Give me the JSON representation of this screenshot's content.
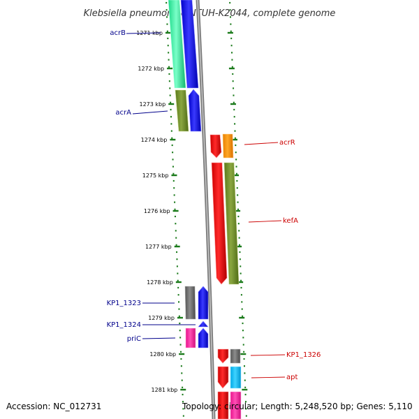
{
  "title": "Klebsiella pneumoniae NTUH-K2044, complete genome",
  "accession": "Accession: NC_012731",
  "topology": "Topology: circular; Length: 5,248,520 bp; Genes: 5,110",
  "ticks": [
    "1271 kbp",
    "1272 kbp",
    "1273 kbp",
    "1274 kbp",
    "1275 kbp",
    "1276 kbp",
    "1277 kbp",
    "1278 kbp",
    "1279 kbp",
    "1280 kbp",
    "1281 kbp"
  ],
  "colors": {
    "forward_label": "#00008b",
    "reverse_label": "#cc0000",
    "backbone": "#888888",
    "tick": "#1a7a1a"
  },
  "labels": [
    {
      "name": "acrB",
      "side": "left",
      "strand": "forward"
    },
    {
      "name": "acrA",
      "side": "left",
      "strand": "forward"
    },
    {
      "name": "acrR",
      "side": "right",
      "strand": "reverse"
    },
    {
      "name": "kefA",
      "side": "right",
      "strand": "reverse"
    },
    {
      "name": "KP1_1323",
      "side": "left",
      "strand": "forward"
    },
    {
      "name": "KP1_1324",
      "side": "left",
      "strand": "forward"
    },
    {
      "name": "priC",
      "side": "left",
      "strand": "forward"
    },
    {
      "name": "KP1_1326",
      "side": "right",
      "strand": "reverse"
    },
    {
      "name": "apt",
      "side": "right",
      "strand": "reverse"
    }
  ]
}
